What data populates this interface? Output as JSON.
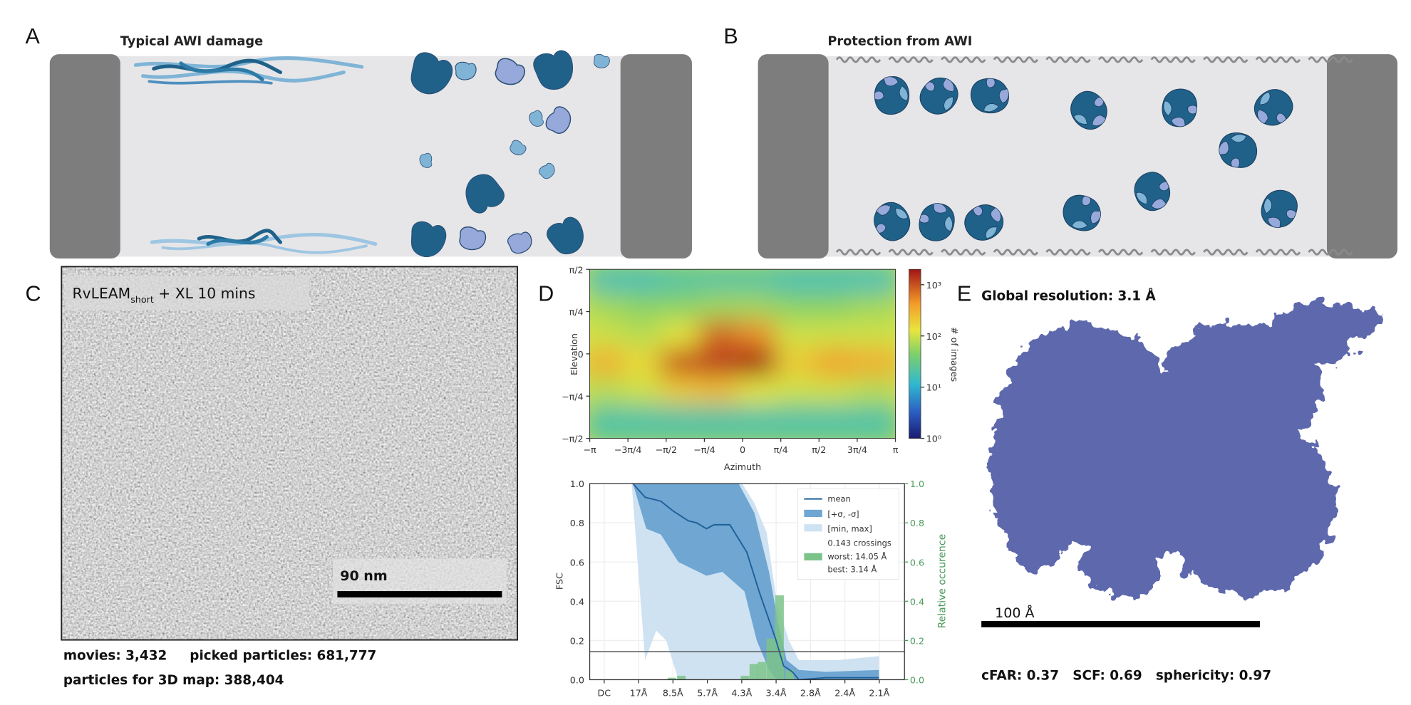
{
  "panels": {
    "A": {
      "letter": "A",
      "title": "Typical AWI damage"
    },
    "B": {
      "letter": "B",
      "title": "Protection from AWI"
    },
    "C": {
      "letter": "C",
      "image_label": {
        "main": "RvLEAM",
        "subscript": "short",
        "suffix": " + XL 10 mins"
      },
      "scale_bar": "90 nm",
      "stats_line1": "movies: 3,432     picked particles: 681,777",
      "stats_line2": "particles for 3D map: 388,404"
    },
    "D": {
      "letter": "D"
    },
    "E": {
      "letter": "E",
      "title": "Global resolution: 3.1  Å",
      "scale_bar": "100 Å",
      "stats": "cFAR: 0.37   SCF: 0.69   sphericity: 0.97"
    }
  },
  "colors": {
    "protein_dark": "#1f6189",
    "protein_light": "#7fb4d6",
    "protein_lavender": "#97a9da",
    "interface_bar": "#7d7d7d",
    "chamber": "#e6e6e8",
    "density_map": "#5d68ad",
    "fsc_mean": "#1f5f9a",
    "fsc_sigma": "#6fa6d2",
    "fsc_minmax": "#cfe2f2",
    "histogram": "#7cc38a"
  },
  "chart_data": [
    {
      "type": "heatmap",
      "xlabel": "Azimuth",
      "ylabel": "Elevation",
      "xticks": [
        "−π",
        "−3π/4",
        "−π/2",
        "−π/4",
        "0",
        "π/4",
        "π/2",
        "3π/4",
        "π"
      ],
      "yticks": [
        "π/2",
        "π/4",
        "0",
        "−π/4",
        "−π/2"
      ],
      "xlim": [
        "-pi",
        "pi"
      ],
      "ylim": [
        "-pi/2",
        "pi/2"
      ],
      "colorbar": {
        "label": "# of images",
        "scale": "log",
        "ticks": [
          "10⁰",
          "10¹",
          "10²",
          "10³"
        ],
        "range_log10": [
          0,
          3.3
        ]
      },
      "colormap": "jet",
      "values_log10_rows_top_to_bottom": [
        [
          1.2,
          1.2,
          1.3,
          1.3,
          1.3,
          1.2,
          1.2,
          1.2
        ],
        [
          1.8,
          1.7,
          1.7,
          1.8,
          1.8,
          1.7,
          1.7,
          1.8
        ],
        [
          2.0,
          1.9,
          2.1,
          2.9,
          2.7,
          2.0,
          2.0,
          2.0
        ],
        [
          2.5,
          2.2,
          3.0,
          3.1,
          3.3,
          2.3,
          2.6,
          2.5
        ],
        [
          1.9,
          2.0,
          2.3,
          2.4,
          2.1,
          2.0,
          2.0,
          1.9
        ],
        [
          1.3,
          1.3,
          1.3,
          1.3,
          1.3,
          1.3,
          1.3,
          1.3
        ]
      ]
    },
    {
      "type": "area",
      "ylabel": "FSC",
      "ylabel_right": "Relative occurence",
      "xtick_labels": [
        "DC",
        "17Å",
        "8.5Å",
        "5.7Å",
        "4.3Å",
        "3.4Å",
        "2.8Å",
        "2.4Å",
        "2.1Å"
      ],
      "xtick_values_inv_angstrom": [
        0,
        0.0588,
        0.1176,
        0.1765,
        0.2353,
        0.2941,
        0.3529,
        0.4118,
        0.4706
      ],
      "ylim": [
        0,
        1
      ],
      "ylim_right": [
        0,
        1
      ],
      "yticks": [
        "0.0",
        "0.2",
        "0.4",
        "0.6",
        "0.8",
        "1.0"
      ],
      "threshold": 0.143,
      "grid": true,
      "legend_position": "top-right",
      "legend": [
        "mean",
        "[+σ, -σ]",
        "[min, max]",
        "0.143 crossings",
        "worst: 14.05 Å",
        "best: 3.14 Å"
      ],
      "mean": {
        "x": [
          0.049,
          0.07,
          0.097,
          0.118,
          0.144,
          0.158,
          0.175,
          0.188,
          0.215,
          0.244,
          0.265,
          0.293,
          0.307,
          0.322,
          0.333,
          0.379,
          0.47
        ],
        "y": [
          1.0,
          0.93,
          0.91,
          0.86,
          0.81,
          0.8,
          0.77,
          0.79,
          0.79,
          0.65,
          0.45,
          0.21,
          0.07,
          0.04,
          0.0,
          0.01,
          0.01
        ]
      },
      "sigma_upper": {
        "x": [
          0.049,
          0.23,
          0.257,
          0.282,
          0.297,
          0.312,
          0.333,
          0.379,
          0.47
        ],
        "y": [
          1.0,
          1.0,
          0.85,
          0.55,
          0.3,
          0.1,
          0.05,
          0.04,
          0.05
        ]
      },
      "sigma_lower": {
        "x": [
          0.049,
          0.072,
          0.097,
          0.127,
          0.175,
          0.202,
          0.24,
          0.261,
          0.282,
          0.295,
          0.47
        ],
        "y": [
          1.0,
          0.77,
          0.74,
          0.6,
          0.53,
          0.55,
          0.45,
          0.2,
          0.05,
          0.0,
          0.0
        ]
      },
      "minmax_upper": {
        "x": [
          0.047,
          0.236,
          0.257,
          0.278,
          0.295,
          0.316,
          0.333,
          0.4,
          0.47
        ],
        "y": [
          1.0,
          1.0,
          0.9,
          0.75,
          0.4,
          0.2,
          0.1,
          0.1,
          0.12
        ]
      },
      "minmax_lower": {
        "x": [
          0.047,
          0.07,
          0.089,
          0.106,
          0.127,
          0.47
        ],
        "y": [
          1.0,
          0.1,
          0.25,
          0.2,
          0.0,
          0.0
        ]
      },
      "histogram": {
        "x": [
          0.116,
          0.132,
          0.241,
          0.256,
          0.27,
          0.285,
          0.3,
          0.317
        ],
        "y": [
          0.01,
          0.02,
          0.02,
          0.08,
          0.09,
          0.21,
          0.43,
          0.05
        ]
      }
    }
  ]
}
